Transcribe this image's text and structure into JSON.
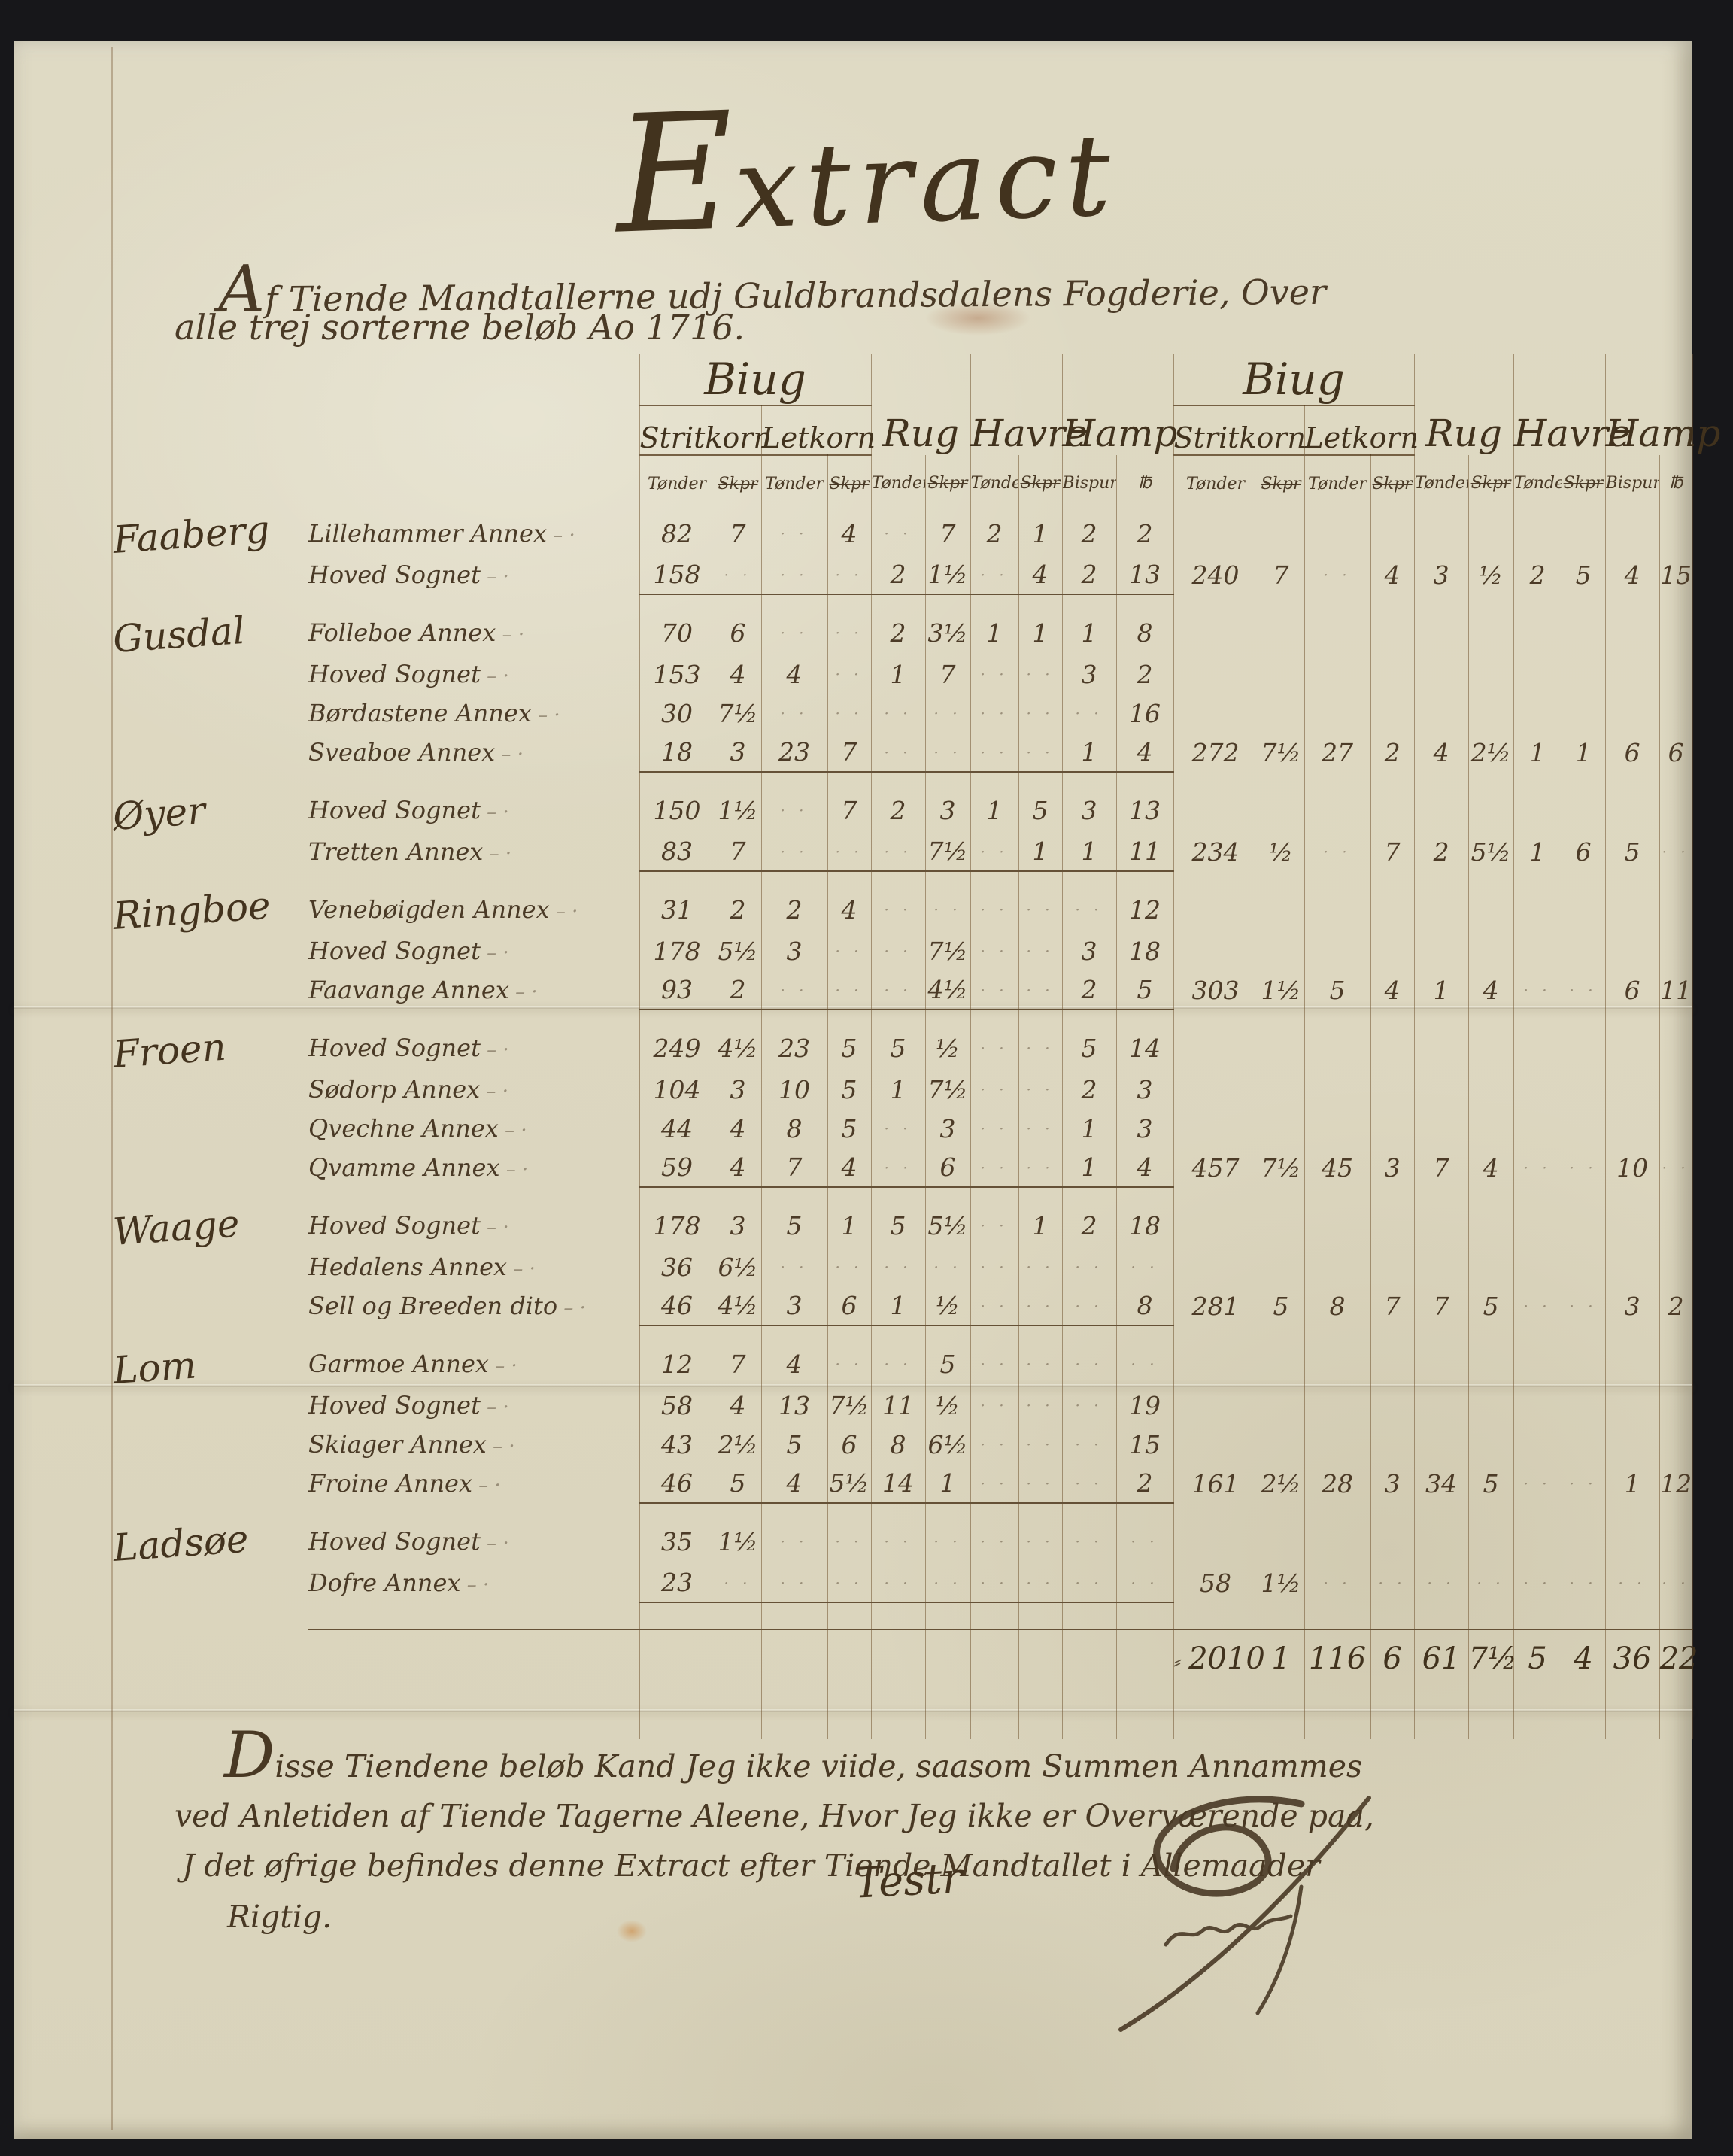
{
  "page": {
    "title": "Extract",
    "subtitle1": "Af Tiende Mandtallerne udj Guldbrandsdalens Fogderie, Over",
    "subtitle2": "alle trej sorterne beløb Ao 1716."
  },
  "table": {
    "header": {
      "biug": "Biug",
      "stritkorn": "Stritkorn",
      "letkorn": "Letkorn",
      "rug": "Rug",
      "havre": "Havre",
      "hamp": "Hamp",
      "tonder": "Tønder",
      "skpr": "Skpr",
      "bispund": "Bispund",
      "pund": "℔"
    },
    "rows": [
      {
        "district": "Faaberg",
        "parish": "Lillehammer Annex",
        "left": [
          "82",
          "7",
          "",
          "4",
          "",
          "7",
          "2",
          "1",
          "2",
          "2"
        ],
        "right": [],
        "groupEnd": false
      },
      {
        "district": "",
        "parish": "Hoved Sognet",
        "left": [
          "158",
          "",
          "",
          "",
          "2",
          "1½",
          "",
          "4",
          "2",
          "13"
        ],
        "right": [
          "240",
          "7",
          "",
          "4",
          "3",
          "½",
          "2",
          "5",
          "4",
          "15"
        ],
        "groupEnd": true
      },
      {
        "district": "Gusdal",
        "parish": "Folleboe Annex",
        "left": [
          "70",
          "6",
          "",
          "",
          "2",
          "3½",
          "1",
          "1",
          "1",
          "8"
        ],
        "right": [],
        "groupEnd": false
      },
      {
        "district": "",
        "parish": "Hoved Sognet",
        "left": [
          "153",
          "4",
          "4",
          "",
          "1",
          "7",
          "",
          "",
          "3",
          "2"
        ],
        "right": [],
        "groupEnd": false
      },
      {
        "district": "",
        "parish": "Børdastene Annex",
        "left": [
          "30",
          "7½",
          "",
          "",
          "",
          "",
          "",
          "",
          "",
          "16"
        ],
        "right": [],
        "groupEnd": false
      },
      {
        "district": "",
        "parish": "Sveaboe Annex",
        "left": [
          "18",
          "3",
          "23",
          "7",
          "",
          "",
          "",
          "",
          "1",
          "4"
        ],
        "right": [
          "272",
          "7½",
          "27",
          "2",
          "4",
          "2½",
          "1",
          "1",
          "6",
          "6"
        ],
        "groupEnd": true
      },
      {
        "district": "Øyer",
        "parish": "Hoved Sognet",
        "left": [
          "150",
          "1½",
          "",
          "7",
          "2",
          "3",
          "1",
          "5",
          "3",
          "13"
        ],
        "right": [],
        "groupEnd": false
      },
      {
        "district": "",
        "parish": "Tretten Annex",
        "left": [
          "83",
          "7",
          "",
          "",
          "",
          "7½",
          "",
          "1",
          "1",
          "11"
        ],
        "right": [
          "234",
          "½",
          "",
          "7",
          "2",
          "5½",
          "1",
          "6",
          "5",
          ""
        ],
        "groupEnd": true
      },
      {
        "district": "Ringboe",
        "parish": "Venebøigden Annex",
        "left": [
          "31",
          "2",
          "2",
          "4",
          "",
          "",
          "",
          "",
          "",
          "12"
        ],
        "right": [],
        "groupEnd": false
      },
      {
        "district": "",
        "parish": "Hoved Sognet",
        "left": [
          "178",
          "5½",
          "3",
          "",
          "",
          "7½",
          "",
          "",
          "3",
          "18"
        ],
        "right": [],
        "groupEnd": false
      },
      {
        "district": "",
        "parish": "Faavange Annex",
        "left": [
          "93",
          "2",
          "",
          "",
          "",
          "4½",
          "",
          "",
          "2",
          "5"
        ],
        "right": [
          "303",
          "1½",
          "5",
          "4",
          "1",
          "4",
          "",
          "",
          "6",
          "11"
        ],
        "groupEnd": true
      },
      {
        "district": "Froen",
        "parish": "Hoved Sognet",
        "left": [
          "249",
          "4½",
          "23",
          "5",
          "5",
          "½",
          "",
          "",
          "5",
          "14"
        ],
        "right": [],
        "groupEnd": false
      },
      {
        "district": "",
        "parish": "Sødorp Annex",
        "left": [
          "104",
          "3",
          "10",
          "5",
          "1",
          "7½",
          "",
          "",
          "2",
          "3"
        ],
        "right": [],
        "groupEnd": false
      },
      {
        "district": "",
        "parish": "Qvechne Annex",
        "left": [
          "44",
          "4",
          "8",
          "5",
          "",
          "3",
          "",
          "",
          "1",
          "3"
        ],
        "right": [],
        "groupEnd": false
      },
      {
        "district": "",
        "parish": "Qvamme Annex",
        "left": [
          "59",
          "4",
          "7",
          "4",
          "",
          "6",
          "",
          "",
          "1",
          "4"
        ],
        "right": [
          "457",
          "7½",
          "45",
          "3",
          "7",
          "4",
          "",
          "",
          "10",
          ""
        ],
        "groupEnd": true
      },
      {
        "district": "Waage",
        "parish": "Hoved Sognet",
        "left": [
          "178",
          "3",
          "5",
          "1",
          "5",
          "5½",
          "",
          "1",
          "2",
          "18"
        ],
        "right": [],
        "groupEnd": false
      },
      {
        "district": "",
        "parish": "Hedalens Annex",
        "left": [
          "36",
          "6½",
          "",
          "",
          "",
          "",
          "",
          "",
          "",
          ""
        ],
        "right": [],
        "groupEnd": false
      },
      {
        "district": "",
        "parish": "Sell og Breeden dito",
        "left": [
          "46",
          "4½",
          "3",
          "6",
          "1",
          "½",
          "",
          "",
          "",
          "8"
        ],
        "right": [
          "281",
          "5",
          "8",
          "7",
          "7",
          "5",
          "",
          "",
          "3",
          "2"
        ],
        "groupEnd": true
      },
      {
        "district": "Lom",
        "parish": "Garmoe Annex",
        "left": [
          "12",
          "7",
          "4",
          "",
          "",
          "5",
          "",
          "",
          "",
          ""
        ],
        "right": [],
        "groupEnd": false
      },
      {
        "district": "",
        "parish": "Hoved Sognet",
        "left": [
          "58",
          "4",
          "13",
          "7½",
          "11",
          "½",
          "",
          "",
          "",
          "19"
        ],
        "right": [],
        "groupEnd": false
      },
      {
        "district": "",
        "parish": "Skiager Annex",
        "left": [
          "43",
          "2½",
          "5",
          "6",
          "8",
          "6½",
          "",
          "",
          "",
          "15"
        ],
        "right": [],
        "groupEnd": false
      },
      {
        "district": "",
        "parish": "Froine Annex",
        "left": [
          "46",
          "5",
          "4",
          "5½",
          "14",
          "1",
          "",
          "",
          "",
          "2"
        ],
        "right": [
          "161",
          "2½",
          "28",
          "3",
          "34",
          "5",
          "",
          "",
          "1",
          "12"
        ],
        "groupEnd": true
      },
      {
        "district": "Ladsøe",
        "parish": "Hoved Sognet",
        "left": [
          "35",
          "1½",
          "",
          "",
          "",
          "",
          "",
          "",
          "",
          ""
        ],
        "right": [],
        "groupEnd": false
      },
      {
        "district": "",
        "parish": "Dofre Annex",
        "left": [
          "23",
          "",
          "",
          "",
          "",
          "",
          "",
          "",
          "",
          ""
        ],
        "right": [
          "58",
          "1½",
          "",
          "",
          "",
          "",
          "",
          "",
          "",
          ""
        ],
        "groupEnd": true
      }
    ],
    "grand_total": [
      "2010",
      "1",
      "116",
      "6",
      "61",
      "7½",
      "5",
      "4",
      "36",
      "22"
    ]
  },
  "footer": {
    "line1": "Disse Tiendene beløb Kand Jeg ikke viide, saasom Summen Annammes",
    "line2": "ved Anletiden af Tiende Tagerne Aleene, Hvor Jeg ikke er Overværende paa,",
    "line3": "J det øfrige befindes denne Extract efter Tiende Mandtallet i Allemaader",
    "line4": "Rigtig.",
    "attest": "Testr"
  }
}
